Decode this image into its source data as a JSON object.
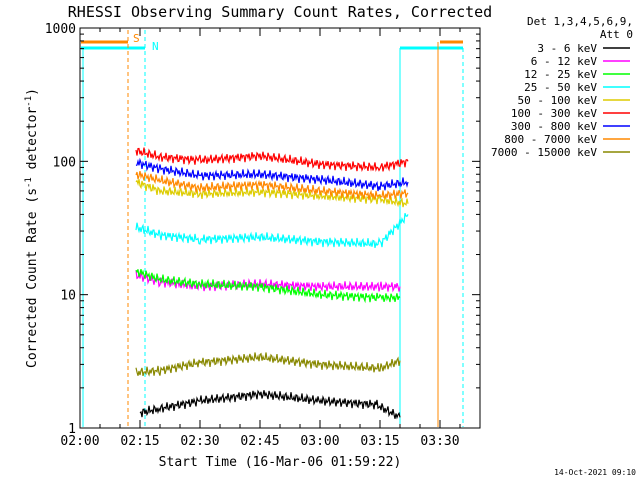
{
  "chart_data": {
    "type": "line",
    "title": "RHESSI Observing Summary Count Rates, Corrected",
    "xlabel": "Start Time (16-Mar-06 01:59:22)",
    "ylabel_main": "Corrected Count Rate (s",
    "ylabel_sup1": "-1",
    "ylabel_mid": " detector",
    "ylabel_sup2": "-1",
    "ylabel_end": ")",
    "y_scale": "log",
    "ylim": [
      1,
      1000
    ],
    "xlim_minutes": [
      0,
      100
    ],
    "x_ticks": [
      {
        "m": 0,
        "label": "02:00"
      },
      {
        "m": 15,
        "label": "02:15"
      },
      {
        "m": 30,
        "label": "02:30"
      },
      {
        "m": 45,
        "label": "02:45"
      },
      {
        "m": 60,
        "label": "03:00"
      },
      {
        "m": 75,
        "label": "03:15"
      },
      {
        "m": 90,
        "label": "03:30"
      }
    ],
    "y_ticks": [
      {
        "v": 1,
        "label": "1"
      },
      {
        "v": 10,
        "label": "10"
      },
      {
        "v": 100,
        "label": "100"
      },
      {
        "v": 1000,
        "label": "1000"
      }
    ],
    "legend_header": [
      "Det 1,3,4,5,6,9,",
      "Att 0"
    ],
    "legend_placement": "right",
    "series": [
      {
        "name": "3 - 6 keV",
        "color": "#000000",
        "x": [
          15,
          20,
          30,
          45,
          60,
          74,
          80
        ],
        "y": [
          1.3,
          1.4,
          1.6,
          1.8,
          1.6,
          1.5,
          1.2
        ]
      },
      {
        "name": "6 - 12 keV",
        "color": "#ff00ff",
        "x": [
          14,
          20,
          30,
          45,
          60,
          75,
          80
        ],
        "y": [
          14,
          12.5,
          11.5,
          12,
          11.5,
          11.5,
          11.5
        ]
      },
      {
        "name": "12 - 25 keV",
        "color": "#00ff00",
        "x": [
          14,
          20,
          30,
          45,
          60,
          75,
          80
        ],
        "y": [
          15,
          13,
          12,
          11.5,
          10,
          9.5,
          9.5
        ]
      },
      {
        "name": "25 - 50 keV",
        "color": "#00ffff",
        "x": [
          14,
          20,
          30,
          45,
          60,
          75,
          82
        ],
        "y": [
          32,
          28,
          26,
          27,
          25,
          24,
          40
        ]
      },
      {
        "name": "50 - 100 keV",
        "color": "#ddcc00",
        "x": [
          14,
          20,
          30,
          45,
          60,
          75,
          82
        ],
        "y": [
          70,
          60,
          57,
          59,
          55,
          52,
          48
        ]
      },
      {
        "name": "100 - 300 keV",
        "color": "#ff0000",
        "x": [
          14,
          20,
          30,
          45,
          60,
          75,
          82
        ],
        "y": [
          120,
          108,
          102,
          110,
          95,
          90,
          100
        ]
      },
      {
        "name": "300 - 800 keV",
        "color": "#0000ff",
        "x": [
          14,
          20,
          30,
          45,
          60,
          75,
          82
        ],
        "y": [
          98,
          88,
          78,
          80,
          73,
          65,
          70
        ]
      },
      {
        "name": "800 - 7000 keV",
        "color": "#ff8800",
        "x": [
          14,
          20,
          30,
          45,
          60,
          75,
          82
        ],
        "y": [
          80,
          72,
          63,
          67,
          60,
          55,
          58
        ]
      },
      {
        "name": "7000 - 15000 keV",
        "color": "#888800",
        "x": [
          14,
          20,
          30,
          45,
          60,
          75,
          80
        ],
        "y": [
          2.6,
          2.7,
          3.1,
          3.4,
          3.0,
          2.8,
          3.2
        ]
      }
    ],
    "annotations": [
      {
        "text": "S",
        "color": "#ff8800"
      },
      {
        "text": "N",
        "color": "#00ffff"
      }
    ]
  },
  "footer_timestamp": "14-Oct-2021 09:10"
}
